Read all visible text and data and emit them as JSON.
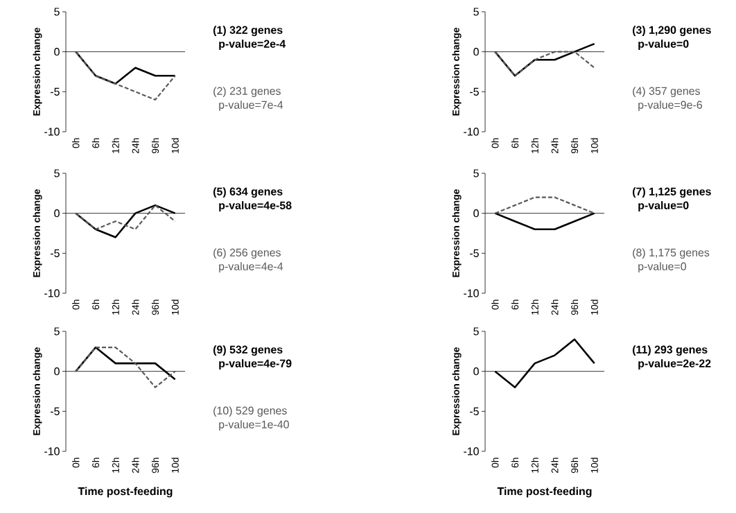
{
  "chart_data": [
    {
      "type": "line",
      "categories": [
        "0h",
        "6h",
        "12h",
        "24h",
        "96h",
        "10d"
      ],
      "ylabel": "Expression change",
      "ylim": [
        -10,
        5
      ],
      "yticks": [
        -10,
        -5,
        0,
        5
      ],
      "series": [
        {
          "name": "(1) 322 genes",
          "color": "#000000",
          "line_style": "solid",
          "values": [
            0,
            -3,
            -4,
            -2,
            -3,
            -3
          ]
        },
        {
          "name": "(2) 231 genes",
          "color": "#595959",
          "line_style": "dashed",
          "values": [
            0,
            -3,
            -4,
            -5,
            -6,
            -3
          ]
        }
      ],
      "annotations": [
        "p-value=2e-4",
        "p-value=7e-4"
      ]
    },
    {
      "type": "line",
      "categories": [
        "0h",
        "6h",
        "12h",
        "24h",
        "96h",
        "10d"
      ],
      "ylabel": "Expression change",
      "ylim": [
        -10,
        5
      ],
      "yticks": [
        -10,
        -5,
        0,
        5
      ],
      "series": [
        {
          "name": "(3) 1,290 genes",
          "color": "#000000",
          "line_style": "solid",
          "values": [
            0,
            -3,
            -1,
            -1,
            0,
            1
          ]
        },
        {
          "name": "(4) 357 genes",
          "color": "#595959",
          "line_style": "dashed",
          "values": [
            0,
            -3,
            -1,
            0,
            0,
            -2
          ]
        }
      ],
      "annotations": [
        "p-value=0",
        "p-value=9e-6"
      ]
    },
    {
      "type": "line",
      "categories": [
        "0h",
        "6h",
        "12h",
        "24h",
        "96h",
        "10d"
      ],
      "ylabel": "Expression change",
      "ylim": [
        -10,
        5
      ],
      "yticks": [
        -10,
        -5,
        0,
        5
      ],
      "series": [
        {
          "name": "(5) 634 genes",
          "color": "#000000",
          "line_style": "solid",
          "values": [
            0,
            -2,
            -3,
            0,
            1,
            0
          ]
        },
        {
          "name": "(6) 256 genes",
          "color": "#595959",
          "line_style": "dashed",
          "values": [
            0,
            -2,
            -1,
            -2,
            1,
            -1
          ]
        }
      ],
      "annotations": [
        "p-value=4e-58",
        "p-value=4e-4"
      ]
    },
    {
      "type": "line",
      "categories": [
        "0h",
        "6h",
        "12h",
        "24h",
        "96h",
        "10d"
      ],
      "ylabel": "Expression change",
      "ylim": [
        -10,
        5
      ],
      "yticks": [
        -10,
        -5,
        0,
        5
      ],
      "series": [
        {
          "name": "(7) 1,125 genes",
          "color": "#000000",
          "line_style": "solid",
          "values": [
            0,
            -1,
            -2,
            -2,
            -1,
            0
          ]
        },
        {
          "name": "(8) 1,175 genes",
          "color": "#595959",
          "line_style": "dashed",
          "values": [
            0,
            1,
            2,
            2,
            1,
            0
          ]
        }
      ],
      "annotations": [
        "p-value=0",
        "p-value=0"
      ]
    },
    {
      "type": "line",
      "categories": [
        "0h",
        "6h",
        "12h",
        "24h",
        "96h",
        "10d"
      ],
      "ylabel": "Expression change",
      "xlabel": "Time post-feeding",
      "ylim": [
        -10,
        5
      ],
      "yticks": [
        -10,
        -5,
        0,
        5
      ],
      "series": [
        {
          "name": "(9) 532 genes",
          "color": "#000000",
          "line_style": "solid",
          "values": [
            0,
            3,
            1,
            1,
            1,
            -1
          ]
        },
        {
          "name": "(10) 529 genes",
          "color": "#595959",
          "line_style": "dashed",
          "values": [
            0,
            3,
            3,
            1,
            -2,
            0
          ]
        }
      ],
      "annotations": [
        "p-value=4e-79",
        "p-value=1e-40"
      ]
    },
    {
      "type": "line",
      "categories": [
        "0h",
        "6h",
        "12h",
        "24h",
        "96h",
        "10d"
      ],
      "ylabel": "Expression change",
      "xlabel": "Time post-feeding",
      "ylim": [
        -10,
        5
      ],
      "yticks": [
        -10,
        -5,
        0,
        5
      ],
      "series": [
        {
          "name": "(11) 293 genes",
          "color": "#000000",
          "line_style": "solid",
          "values": [
            0,
            -2,
            1,
            2,
            4,
            1
          ]
        }
      ],
      "annotations": [
        "p-value=2e-22"
      ]
    }
  ]
}
